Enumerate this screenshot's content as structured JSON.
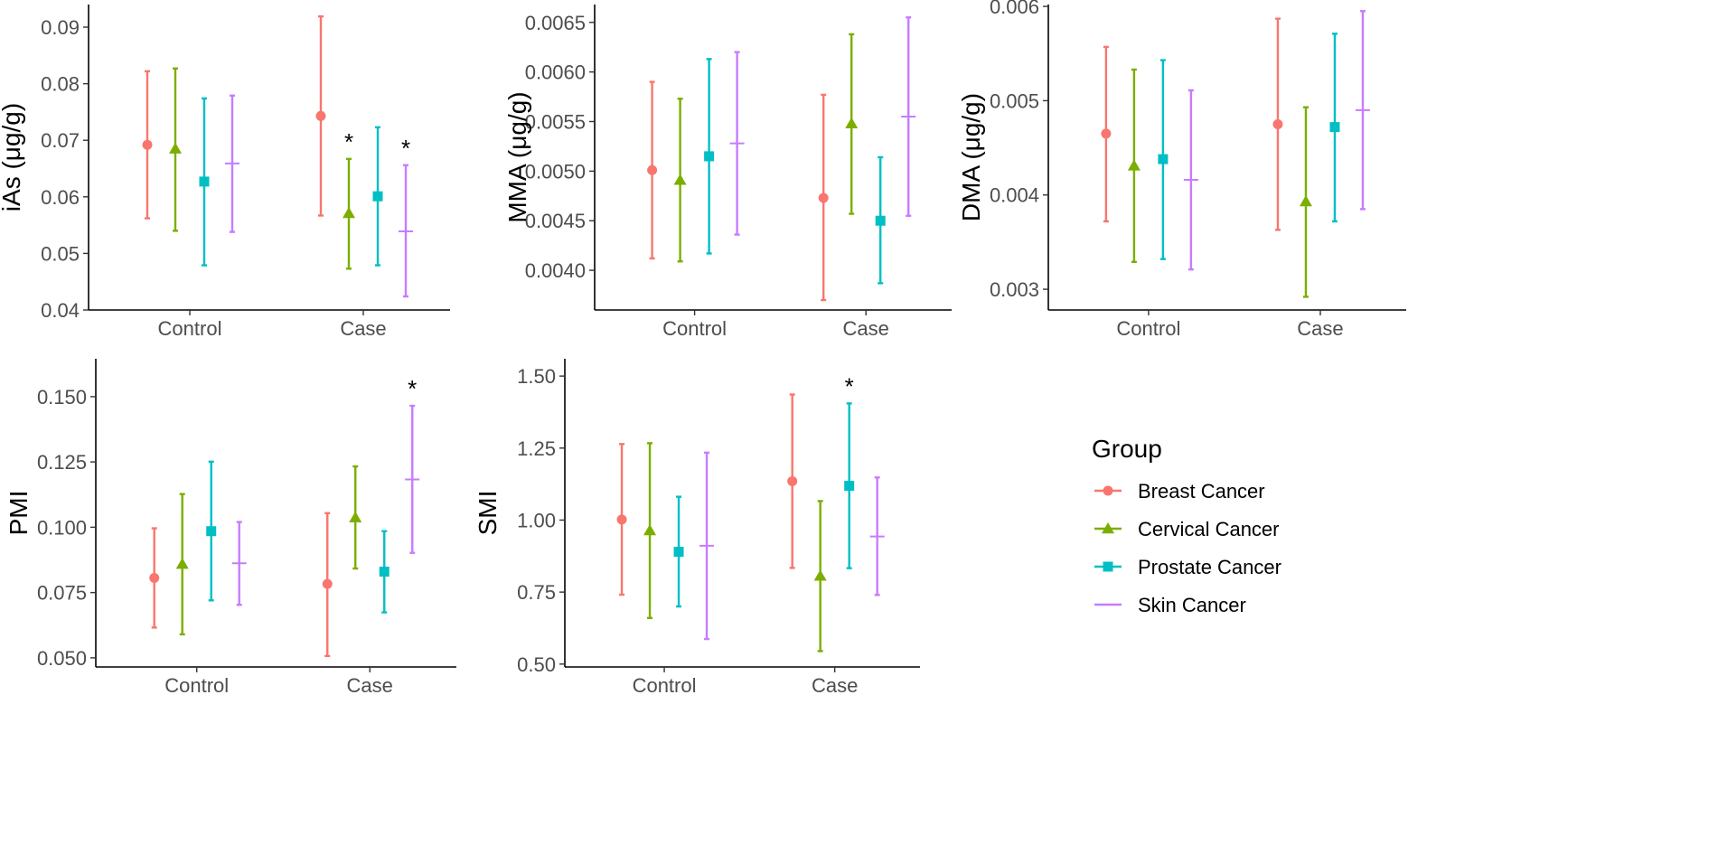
{
  "groups": [
    {
      "name": "Breast Cancer",
      "color": "#F8766D",
      "shape": "circle"
    },
    {
      "name": "Cervical Cancer",
      "color": "#7CAE00",
      "shape": "triangle"
    },
    {
      "name": "Prostate Cancer",
      "color": "#00BFC4",
      "shape": "square"
    },
    {
      "name": "Skin Cancer",
      "color": "#C77CFF",
      "shape": "plus"
    }
  ],
  "legend": {
    "title": "Group",
    "items": [
      "Breast Cancer",
      "Cervical Cancer",
      "Prostate Cancer",
      "Skin Cancer"
    ]
  },
  "chart_data": [
    {
      "type": "scatter",
      "title": "",
      "xlabel": "",
      "ylabel": "iAs (μg/g)",
      "categories": [
        "Control",
        "Case"
      ],
      "ylim": [
        0.04,
        0.094
      ],
      "yticks": [
        0.04,
        0.05,
        0.06,
        0.07,
        0.08,
        0.09
      ],
      "ytick_labels": [
        "0.04",
        "0.05",
        "0.06",
        "0.07",
        "0.08",
        "0.09"
      ],
      "series": [
        {
          "name": "Breast Cancer",
          "values": [
            0.0692,
            0.0743
          ],
          "lower": [
            0.0562,
            0.0567
          ],
          "upper": [
            0.0822,
            0.0919
          ]
        },
        {
          "name": "Cervical Cancer",
          "values": [
            0.0685,
            0.0571
          ],
          "lower": [
            0.054,
            0.0473
          ],
          "upper": [
            0.0827,
            0.0667
          ]
        },
        {
          "name": "Prostate Cancer",
          "values": [
            0.0627,
            0.0601
          ],
          "lower": [
            0.0479,
            0.0479
          ],
          "upper": [
            0.0774,
            0.0723
          ]
        },
        {
          "name": "Skin Cancer",
          "values": [
            0.0659,
            0.0539
          ],
          "lower": [
            0.0538,
            0.0424
          ],
          "upper": [
            0.0779,
            0.0656
          ]
        }
      ],
      "annotations": [
        {
          "text": "*",
          "category": "Case",
          "series": "Cervical Cancer"
        },
        {
          "text": "*",
          "category": "Case",
          "series": "Skin Cancer"
        }
      ]
    },
    {
      "type": "scatter",
      "title": "",
      "xlabel": "",
      "ylabel": "MMA (μg/g)",
      "categories": [
        "Control",
        "Case"
      ],
      "ylim": [
        0.0036,
        0.00668
      ],
      "yticks": [
        0.004,
        0.0045,
        0.005,
        0.0055,
        0.006,
        0.0065
      ],
      "ytick_labels": [
        "0.0040",
        "0.0045",
        "0.0050",
        "0.0055",
        "0.0060",
        "0.0065"
      ],
      "series": [
        {
          "name": "Breast Cancer",
          "values": [
            0.00501,
            0.00473
          ],
          "lower": [
            0.00412,
            0.0037
          ],
          "upper": [
            0.0059,
            0.00577
          ]
        },
        {
          "name": "Cervical Cancer",
          "values": [
            0.00491,
            0.00548
          ],
          "lower": [
            0.00409,
            0.00457
          ],
          "upper": [
            0.00573,
            0.00638
          ]
        },
        {
          "name": "Prostate Cancer",
          "values": [
            0.00515,
            0.0045
          ],
          "lower": [
            0.00417,
            0.00387
          ],
          "upper": [
            0.00613,
            0.00514
          ]
        },
        {
          "name": "Skin Cancer",
          "values": [
            0.00528,
            0.00555
          ],
          "lower": [
            0.00436,
            0.00455
          ],
          "upper": [
            0.0062,
            0.00655
          ]
        }
      ],
      "annotations": []
    },
    {
      "type": "scatter",
      "title": "",
      "xlabel": "",
      "ylabel": "DMA (μg/g)",
      "categories": [
        "Control",
        "Case"
      ],
      "ylim": [
        0.00278,
        0.00602
      ],
      "yticks": [
        0.003,
        0.004,
        0.005,
        0.006
      ],
      "ytick_labels": [
        "0.003",
        "0.004",
        "0.005",
        "0.006"
      ],
      "series": [
        {
          "name": "Breast Cancer",
          "values": [
            0.00465,
            0.00475
          ],
          "lower": [
            0.00372,
            0.00363
          ],
          "upper": [
            0.00557,
            0.00587
          ]
        },
        {
          "name": "Cervical Cancer",
          "values": [
            0.00431,
            0.00393
          ],
          "lower": [
            0.00329,
            0.00292
          ],
          "upper": [
            0.00533,
            0.00493
          ]
        },
        {
          "name": "Prostate Cancer",
          "values": [
            0.00438,
            0.00472
          ],
          "lower": [
            0.00332,
            0.00372
          ],
          "upper": [
            0.00543,
            0.00571
          ]
        },
        {
          "name": "Skin Cancer",
          "values": [
            0.00416,
            0.0049
          ],
          "lower": [
            0.00321,
            0.00385
          ],
          "upper": [
            0.00511,
            0.00595
          ]
        }
      ],
      "annotations": []
    },
    {
      "type": "scatter",
      "title": "",
      "xlabel": "",
      "ylabel": "PMI",
      "categories": [
        "Control",
        "Case"
      ],
      "ylim": [
        0.0465,
        0.1645
      ],
      "yticks": [
        0.05,
        0.075,
        0.1,
        0.125,
        0.15
      ],
      "ytick_labels": [
        "0.050",
        "0.075",
        "0.100",
        "0.125",
        "0.150"
      ],
      "series": [
        {
          "name": "Breast Cancer",
          "values": [
            0.0806,
            0.0783
          ],
          "lower": [
            0.0616,
            0.0507
          ],
          "upper": [
            0.0996,
            0.1054
          ]
        },
        {
          "name": "Cervical Cancer",
          "values": [
            0.0859,
            0.1037
          ],
          "lower": [
            0.059,
            0.0842
          ],
          "upper": [
            0.1127,
            0.1233
          ]
        },
        {
          "name": "Prostate Cancer",
          "values": [
            0.0985,
            0.083
          ],
          "lower": [
            0.072,
            0.0674
          ],
          "upper": [
            0.1251,
            0.0985
          ]
        },
        {
          "name": "Skin Cancer",
          "values": [
            0.0862,
            0.1183
          ],
          "lower": [
            0.0703,
            0.0902
          ],
          "upper": [
            0.102,
            0.1465
          ]
        }
      ],
      "annotations": [
        {
          "text": "*",
          "category": "Case",
          "series": "Skin Cancer"
        }
      ]
    },
    {
      "type": "scatter",
      "title": "",
      "xlabel": "",
      "ylabel": "SMI",
      "categories": [
        "Control",
        "Case"
      ],
      "ylim": [
        0.49,
        1.56
      ],
      "yticks": [
        0.5,
        0.75,
        1.0,
        1.25,
        1.5
      ],
      "ytick_labels": [
        "0.50",
        "0.75",
        "1.00",
        "1.25",
        "1.50"
      ],
      "series": [
        {
          "name": "Breast Cancer",
          "values": [
            1.002,
            1.135
          ],
          "lower": [
            0.741,
            0.834
          ],
          "upper": [
            1.264,
            1.436
          ]
        },
        {
          "name": "Cervical Cancer",
          "values": [
            0.964,
            0.806
          ],
          "lower": [
            0.66,
            0.545
          ],
          "upper": [
            1.267,
            1.066
          ]
        },
        {
          "name": "Prostate Cancer",
          "values": [
            0.89,
            1.119
          ],
          "lower": [
            0.7,
            0.833
          ],
          "upper": [
            1.081,
            1.405
          ]
        },
        {
          "name": "Skin Cancer",
          "values": [
            0.911,
            0.943
          ],
          "lower": [
            0.587,
            0.74
          ],
          "upper": [
            1.234,
            1.148
          ]
        }
      ],
      "annotations": [
        {
          "text": "*",
          "category": "Case",
          "series": "Prostate Cancer"
        }
      ]
    }
  ]
}
